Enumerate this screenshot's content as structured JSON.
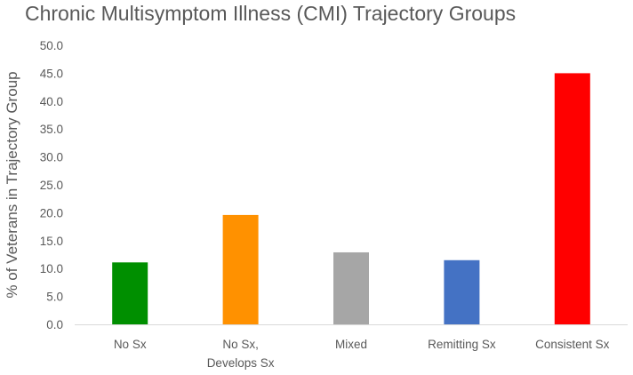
{
  "chart_data": {
    "type": "bar",
    "title": "Chronic Multisymptom Illness (CMI) Trajectory Groups",
    "xlabel": "",
    "ylabel": "% of Veterans in Trajectory Group",
    "ylim": [
      0,
      50
    ],
    "ytick_step": 5,
    "ytick_labels": [
      "0.0",
      "5.0",
      "10.0",
      "15.0",
      "20.0",
      "25.0",
      "30.0",
      "35.0",
      "40.0",
      "45.0",
      "50.0"
    ],
    "grid": false,
    "legend": "none",
    "categories": [
      [
        "No Sx"
      ],
      [
        "No Sx,",
        "Develops Sx"
      ],
      [
        "Mixed"
      ],
      [
        "Remitting Sx"
      ],
      [
        "Consistent Sx"
      ]
    ],
    "values": [
      11.1,
      19.6,
      12.9,
      11.5,
      45.0
    ],
    "colors": [
      "#008f00",
      "#ff9100",
      "#a6a6a6",
      "#4472c4",
      "#ff0000"
    ]
  }
}
